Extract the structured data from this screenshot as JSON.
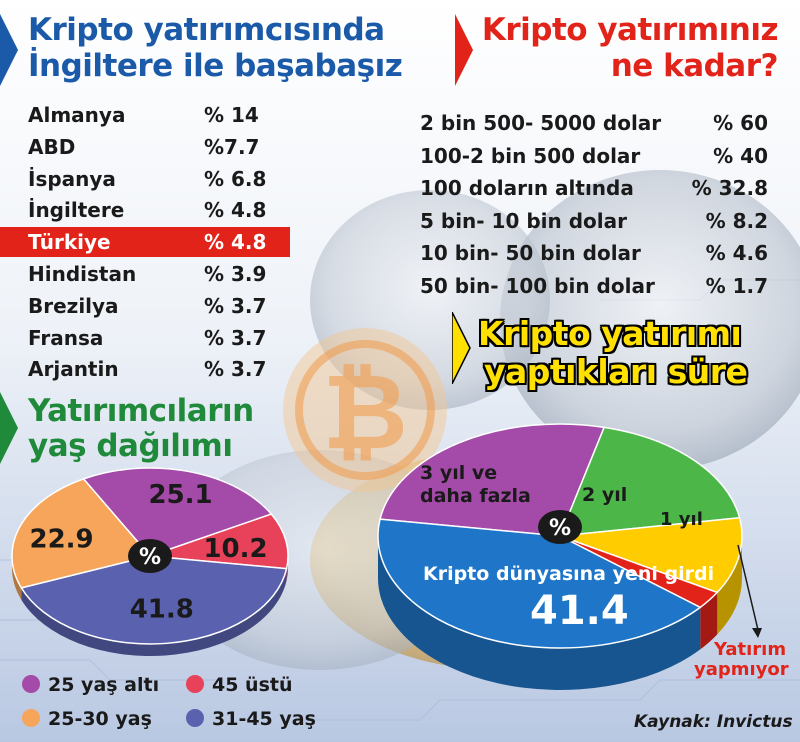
{
  "colors": {
    "blue_title": "#1a5aa8",
    "red_title": "#e2231a",
    "green_title": "#1f8a3a",
    "highlight": "#e2231a",
    "purple": "#a44aa9",
    "pink": "#e8415a",
    "orange": "#f6a55a",
    "navy": "#5a62b0",
    "green": "#4cb748",
    "yellow": "#ffcc00",
    "red": "#e2231a",
    "blue": "#1f76c8",
    "yellow_title": "#ffe000"
  },
  "icons": [
    "bitcoin-coin-icon",
    "arrow-right-icon",
    "percent-badge-icon",
    "pointer-arrow-icon"
  ],
  "countries": {
    "title_line1": "Kripto yatırımcısında",
    "title_line2": "İngiltere ile başabaşız",
    "rows": [
      {
        "label": "Almanya",
        "value": "% 14"
      },
      {
        "label": "ABD",
        "value": "%7.7"
      },
      {
        "label": "İspanya",
        "value": "% 6.8"
      },
      {
        "label": "İngiltere",
        "value": "% 4.8"
      },
      {
        "label": "Türkiye",
        "value": "% 4.8"
      },
      {
        "label": "Hindistan",
        "value": "% 3.9"
      },
      {
        "label": "Brezilya",
        "value": "% 3.7"
      },
      {
        "label": "Fransa",
        "value": "% 3.7"
      },
      {
        "label": "Arjantin",
        "value": "% 3.7"
      }
    ]
  },
  "amount": {
    "title_line1": "Kripto yatırımınız",
    "title_line2": "ne kadar?",
    "rows": [
      {
        "label": "2 bin 500- 5000 dolar",
        "value": "% 60"
      },
      {
        "label": "100-2 bin 500 dolar",
        "value": "% 40"
      },
      {
        "label": "100 doların altında",
        "value": "% 32.8"
      },
      {
        "label": "5 bin- 10 bin dolar",
        "value": "% 8.2"
      },
      {
        "label": "10 bin- 50 bin dolar",
        "value": "% 4.6"
      },
      {
        "label": "50 bin- 100 bin dolar",
        "value": "% 1.7"
      }
    ]
  },
  "age": {
    "title_line1": "Yatırımcıların",
    "title_line2": "yaş dağılımı",
    "center": "%",
    "legend": [
      {
        "label": "25 yaş altı",
        "color": "#a44aa9"
      },
      {
        "label": "45 üstü",
        "color": "#e8415a"
      },
      {
        "label": "25-30 yaş",
        "color": "#f6a55a"
      },
      {
        "label": "31-45 yaş",
        "color": "#5a62b0"
      }
    ]
  },
  "duration": {
    "title_line1": "Kripto yatırımı",
    "title_line2": "yaptıkları süre",
    "center": "%",
    "label_3yil_line1": "3 yıl ve",
    "label_3yil_line2": "daha fazla",
    "label_2yil": "2 yıl",
    "label_1yil": "1 yıl",
    "label_new": "Kripto dünyasına yeni girdi",
    "value_new": "41.4",
    "label_none_line1": "Yatırım",
    "label_none_line2": "yapmıyor"
  },
  "source": "Kaynak: Invictus",
  "chart_data": [
    {
      "type": "pie",
      "title": "Yatırımcıların yaş dağılımı",
      "unit": "%",
      "categories": [
        "25 yaş altı",
        "45 üstü",
        "31-45 yaş",
        "25-30 yaş"
      ],
      "values": [
        25.1,
        10.2,
        41.8,
        22.9
      ],
      "colors": [
        "#a44aa9",
        "#e8415a",
        "#5a62b0",
        "#f6a55a"
      ],
      "value_labels": [
        "25.1",
        "10.2",
        "41.8",
        "22.9"
      ]
    },
    {
      "type": "pie",
      "title": "Kripto yatırımı yaptıkları süre",
      "unit": "%",
      "categories": [
        "3 yıl ve daha fazla",
        "2 yıl",
        "1 yıl",
        "Yatırım yapmıyor",
        "Kripto dünyasına yeni girdi"
      ],
      "values": [
        26.5,
        18.5,
        11.0,
        2.6,
        41.4
      ],
      "colors": [
        "#a44aa9",
        "#4cb748",
        "#ffcc00",
        "#e2231a",
        "#1f76c8"
      ]
    }
  ]
}
